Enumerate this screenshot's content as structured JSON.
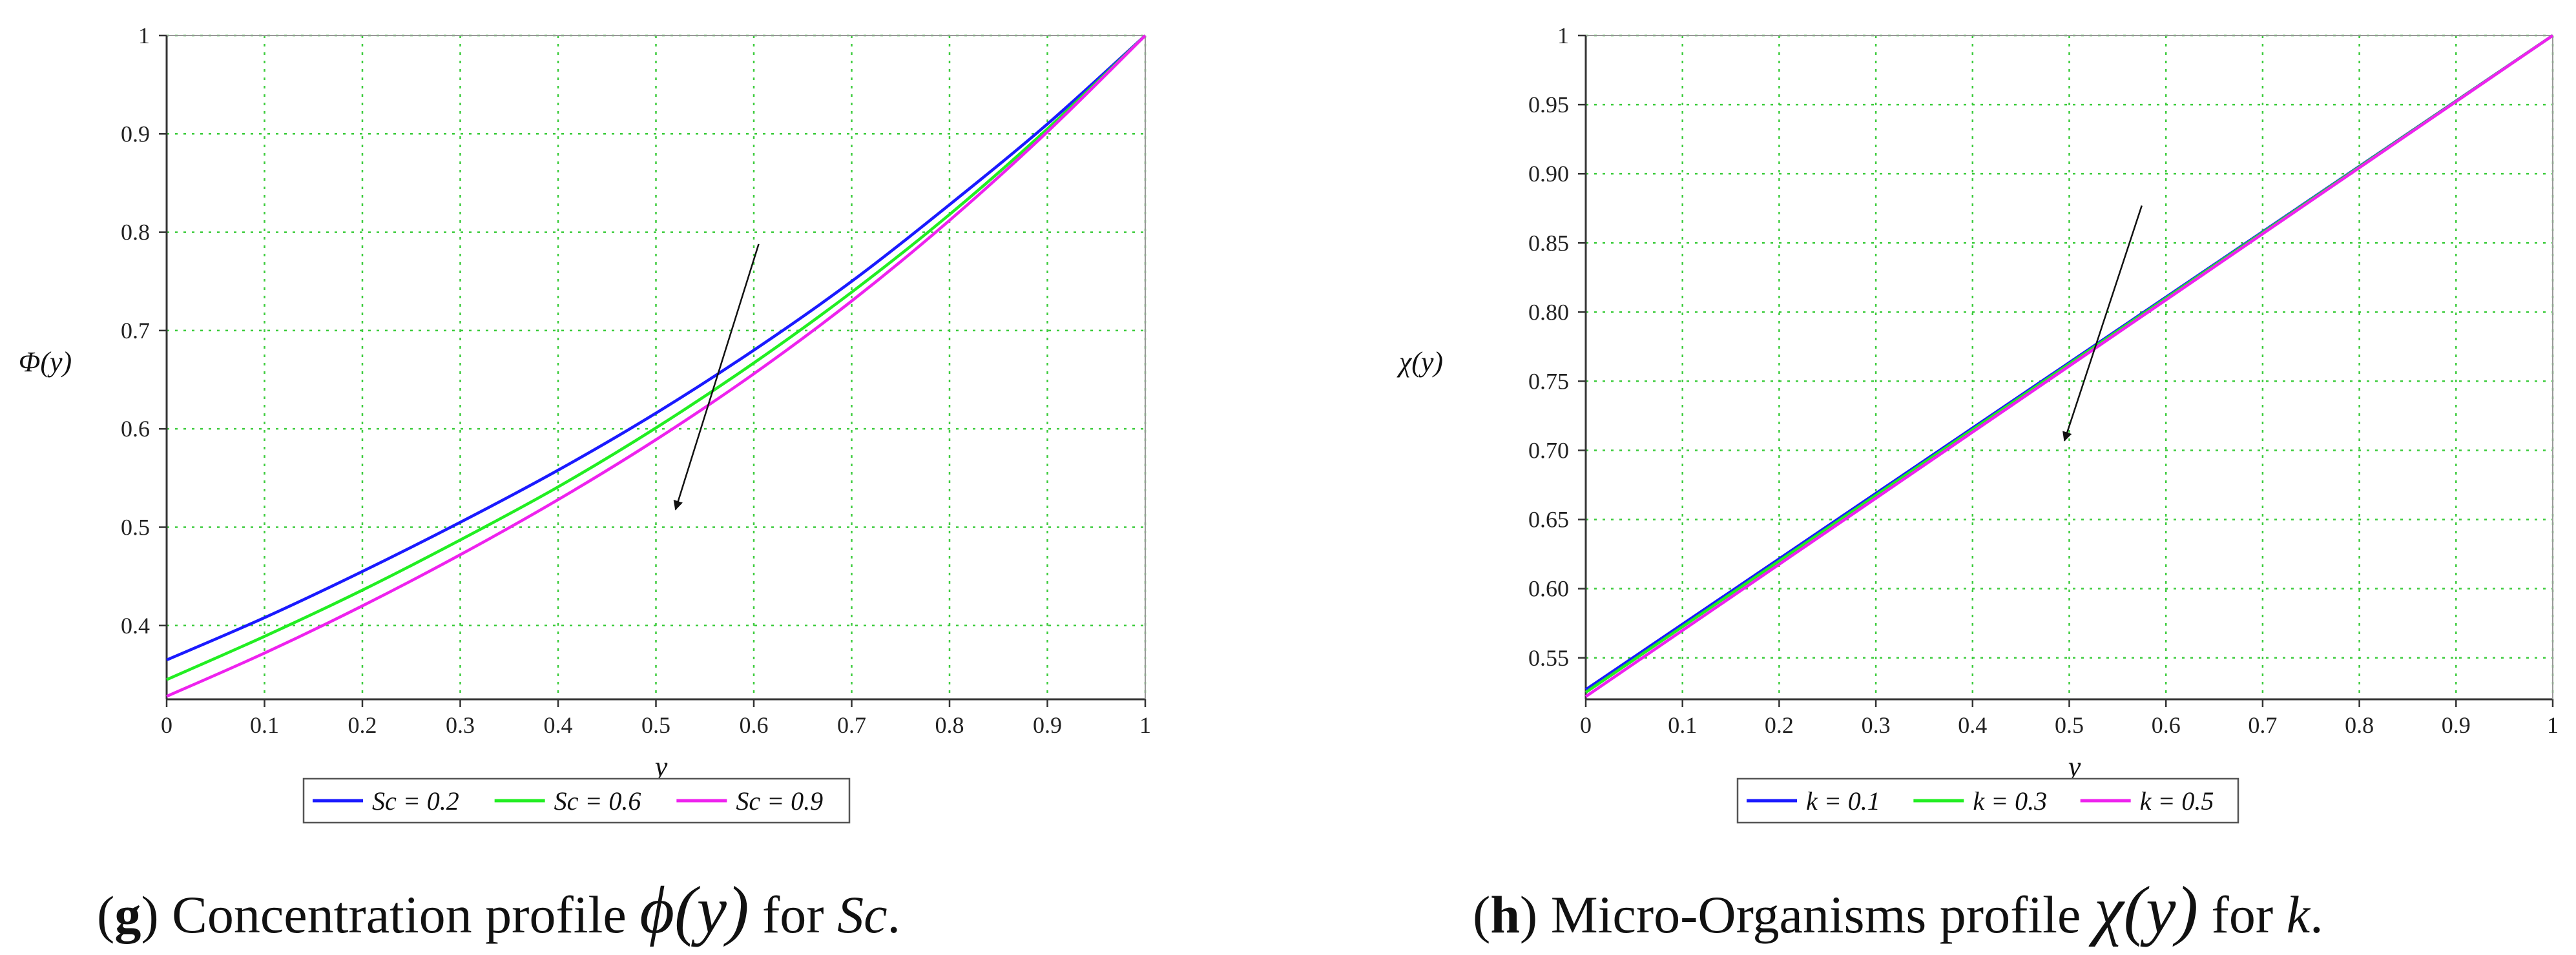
{
  "chart_data": [
    {
      "type": "line",
      "ylabel": "Φ(y)",
      "xlabel": "y",
      "xlim": [
        0,
        1
      ],
      "ylim": [
        0.325,
        1
      ],
      "grid": true,
      "x_ticks": [
        0,
        0.1,
        0.2,
        0.3,
        0.4,
        0.5,
        0.6,
        0.7,
        0.8,
        0.9,
        1
      ],
      "x_tick_labels": [
        "0",
        "0.1",
        "0.2",
        "0.3",
        "0.4",
        "0.5",
        "0.6",
        "0.7",
        "0.8",
        "0.9",
        "1"
      ],
      "y_ticks": [
        0.4,
        0.5,
        0.6,
        0.7,
        0.8,
        0.9,
        1
      ],
      "y_tick_labels": [
        "0.4",
        "0.5",
        "0.6",
        "0.7",
        "0.8",
        "0.9",
        "1"
      ],
      "x": [
        0,
        0.1,
        0.2,
        0.3,
        0.4,
        0.5,
        0.6,
        0.7,
        0.8,
        0.9,
        1
      ],
      "series": [
        {
          "name": "Sc = 0.2",
          "color": "#1a1aff",
          "values": [
            0.365,
            0.408,
            0.455,
            0.505,
            0.558,
            0.616,
            0.68,
            0.75,
            0.828,
            0.91,
            1.0
          ]
        },
        {
          "name": "Sc = 0.6",
          "color": "#22ee22",
          "values": [
            0.345,
            0.389,
            0.436,
            0.487,
            0.541,
            0.601,
            0.667,
            0.739,
            0.818,
            0.905,
            1.0
          ]
        },
        {
          "name": "Sc = 0.9",
          "color": "#ee22ee",
          "values": [
            0.328,
            0.372,
            0.42,
            0.472,
            0.528,
            0.589,
            0.656,
            0.73,
            0.812,
            0.902,
            1.0
          ]
        }
      ],
      "annotation": {
        "type": "arrow",
        "from": [
          0.605,
          0.788
        ],
        "to": [
          0.52,
          0.518
        ]
      },
      "legend": "bottom-center",
      "caption": {
        "label": "g",
        "text_before": " Concentration profile ",
        "symbol": "ϕ(y)",
        "text_mid": " for ",
        "param": "Sc",
        "end": "."
      }
    },
    {
      "type": "line",
      "ylabel": "χ(y)",
      "xlabel": "y",
      "xlim": [
        0,
        1
      ],
      "ylim": [
        0.52,
        1
      ],
      "grid": true,
      "x_ticks": [
        0,
        0.1,
        0.2,
        0.3,
        0.4,
        0.5,
        0.6,
        0.7,
        0.8,
        0.9,
        1
      ],
      "x_tick_labels": [
        "0",
        "0.1",
        "0.2",
        "0.3",
        "0.4",
        "0.5",
        "0.6",
        "0.7",
        "0.8",
        "0.9",
        "1"
      ],
      "y_ticks": [
        0.55,
        0.6,
        0.65,
        0.7,
        0.75,
        0.8,
        0.85,
        0.9,
        0.95,
        1
      ],
      "y_tick_labels": [
        "0.55",
        "0.60",
        "0.65",
        "0.70",
        "0.75",
        "0.80",
        "0.85",
        "0.90",
        "0.95",
        "1"
      ],
      "x": [
        0,
        1
      ],
      "series": [
        {
          "name": "k = 0.1",
          "color": "#1a1aff",
          "values": [
            0.527,
            1.0
          ]
        },
        {
          "name": "k = 0.3",
          "color": "#22ee22",
          "values": [
            0.525,
            1.0
          ]
        },
        {
          "name": "k = 0.5",
          "color": "#ee22ee",
          "values": [
            0.522,
            1.0
          ]
        }
      ],
      "annotation": {
        "type": "arrow",
        "from": [
          0.575,
          0.877
        ],
        "to": [
          0.495,
          0.707
        ]
      },
      "legend": "bottom-center",
      "caption": {
        "label": "h",
        "text_before": " Micro-Organisms profile ",
        "symbol": "χ(y)",
        "text_mid": " for ",
        "param": "k",
        "end": "."
      }
    }
  ]
}
